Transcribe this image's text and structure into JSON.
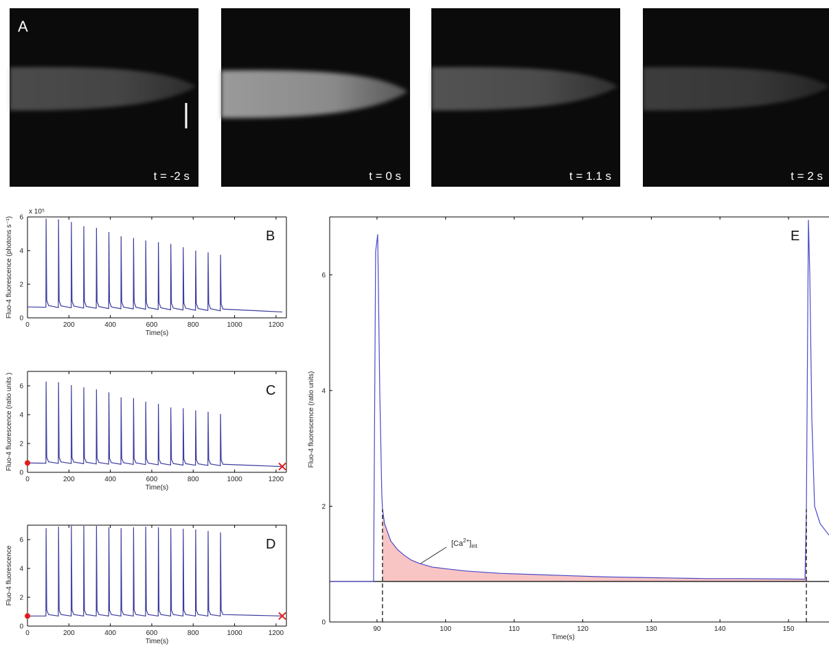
{
  "images": {
    "label": "A",
    "frames": [
      "t = -2 s",
      "t = 0 s",
      "t = 1.1 s",
      "t = 2 s"
    ]
  },
  "chart_data": [
    {
      "type": "line",
      "label": "B",
      "multiplier": "x 10⁵",
      "ylabel": "Fluo-4 fluorescence (photons s⁻¹)",
      "xlabel": "Time(s)",
      "xlim": [
        0,
        1250
      ],
      "ylim": [
        0,
        6
      ],
      "xticks": [
        0,
        200,
        400,
        600,
        800,
        1000,
        1200
      ],
      "yticks": [
        0,
        2,
        4,
        6
      ],
      "color": "#3a3a9e",
      "x": [
        0,
        89,
        90,
        93,
        102,
        149,
        150,
        153,
        162,
        211,
        212,
        215,
        224,
        271,
        272,
        275,
        284,
        332,
        333,
        336,
        345,
        392,
        393,
        396,
        405,
        451,
        452,
        455,
        464,
        511,
        512,
        515,
        524,
        570,
        571,
        574,
        583,
        631,
        632,
        635,
        644,
        691,
        692,
        695,
        704,
        751,
        752,
        755,
        764,
        811,
        812,
        815,
        824,
        871,
        872,
        875,
        884,
        931,
        932,
        935,
        944,
        1230
      ],
      "values": [
        0.65,
        0.63,
        5.9,
        1.03,
        0.73,
        0.61,
        5.85,
        1.01,
        0.71,
        0.6,
        5.7,
        1.0,
        0.7,
        0.58,
        5.45,
        0.98,
        0.68,
        0.57,
        5.35,
        0.97,
        0.67,
        0.55,
        5.1,
        0.95,
        0.65,
        0.54,
        4.85,
        0.94,
        0.64,
        0.53,
        4.75,
        0.93,
        0.63,
        0.51,
        4.6,
        0.91,
        0.61,
        0.5,
        4.5,
        0.9,
        0.6,
        0.48,
        4.4,
        0.88,
        0.58,
        0.47,
        4.2,
        0.87,
        0.57,
        0.45,
        4.0,
        0.85,
        0.55,
        0.44,
        3.9,
        0.84,
        0.54,
        0.42,
        3.75,
        0.82,
        0.52,
        0.35
      ]
    },
    {
      "type": "line",
      "label": "C",
      "ylabel": "Fluo-4 fluorescence (ratio units )",
      "xlabel": "Time(s)",
      "xlim": [
        0,
        1250
      ],
      "ylim": [
        0,
        7
      ],
      "xticks": [
        0,
        200,
        400,
        600,
        800,
        1000,
        1200
      ],
      "yticks": [
        0,
        2,
        4,
        6
      ],
      "color": "#3a3a9e",
      "x": [
        0,
        89,
        90,
        93,
        102,
        149,
        150,
        153,
        162,
        211,
        212,
        215,
        224,
        271,
        272,
        275,
        284,
        332,
        333,
        336,
        345,
        392,
        393,
        396,
        405,
        451,
        452,
        455,
        464,
        511,
        512,
        515,
        524,
        570,
        571,
        574,
        583,
        631,
        632,
        635,
        644,
        691,
        692,
        695,
        704,
        751,
        752,
        755,
        764,
        811,
        812,
        815,
        824,
        871,
        872,
        875,
        884,
        931,
        932,
        935,
        944,
        1230
      ],
      "values": [
        0.65,
        0.63,
        6.3,
        1.03,
        0.73,
        0.62,
        6.25,
        1.02,
        0.72,
        0.61,
        6.05,
        1.01,
        0.71,
        0.6,
        5.9,
        1.0,
        0.7,
        0.58,
        5.75,
        0.98,
        0.68,
        0.57,
        5.55,
        0.97,
        0.67,
        0.56,
        5.2,
        0.96,
        0.66,
        0.55,
        5.15,
        0.95,
        0.65,
        0.54,
        4.9,
        0.94,
        0.64,
        0.52,
        4.75,
        0.92,
        0.62,
        0.51,
        4.5,
        0.91,
        0.61,
        0.5,
        4.45,
        0.9,
        0.6,
        0.49,
        4.3,
        0.89,
        0.59,
        0.48,
        4.2,
        0.88,
        0.58,
        0.46,
        4.05,
        0.86,
        0.56,
        0.4
      ],
      "markers": [
        {
          "x": 0,
          "y": 0.65,
          "shape": "circle",
          "color": "#e21b1b"
        },
        {
          "x": 1230,
          "y": 0.4,
          "shape": "x",
          "color": "#e21b1b"
        }
      ]
    },
    {
      "type": "line",
      "label": "D",
      "ylabel": "Fluo-4 fluorescence",
      "xlabel": "Time(s)",
      "xlim": [
        0,
        1250
      ],
      "ylim": [
        0,
        7
      ],
      "xticks": [
        0,
        200,
        400,
        600,
        800,
        1000,
        1200
      ],
      "yticks": [
        0,
        2,
        4,
        6
      ],
      "color": "#3a3a9e",
      "x": [
        0,
        89,
        90,
        93,
        102,
        149,
        150,
        153,
        162,
        211,
        212,
        215,
        224,
        271,
        272,
        275,
        284,
        332,
        333,
        336,
        345,
        392,
        393,
        396,
        405,
        451,
        452,
        455,
        464,
        511,
        512,
        515,
        524,
        570,
        571,
        574,
        583,
        631,
        632,
        635,
        644,
        691,
        692,
        695,
        704,
        751,
        752,
        755,
        764,
        811,
        812,
        815,
        824,
        871,
        872,
        875,
        884,
        931,
        932,
        935,
        944,
        1230
      ],
      "values": [
        0.7,
        0.7,
        6.8,
        1.1,
        0.8,
        0.7,
        6.9,
        1.1,
        0.8,
        0.7,
        6.95,
        1.1,
        0.8,
        0.7,
        6.95,
        1.1,
        0.8,
        0.7,
        6.95,
        1.1,
        0.8,
        0.7,
        6.85,
        1.1,
        0.8,
        0.7,
        6.8,
        1.1,
        0.8,
        0.7,
        6.85,
        1.1,
        0.8,
        0.7,
        6.9,
        1.1,
        0.8,
        0.7,
        6.85,
        1.1,
        0.8,
        0.7,
        6.8,
        1.1,
        0.8,
        0.7,
        6.75,
        1.1,
        0.8,
        0.7,
        6.7,
        1.1,
        0.8,
        0.7,
        6.6,
        1.1,
        0.8,
        0.7,
        6.5,
        1.1,
        0.8,
        0.7
      ],
      "markers": [
        {
          "x": 0,
          "y": 0.7,
          "shape": "circle",
          "color": "#e21b1b"
        },
        {
          "x": 1230,
          "y": 0.7,
          "shape": "x",
          "color": "#e21b1b"
        }
      ]
    },
    {
      "type": "line",
      "label": "E",
      "ylabel": "Fluo-4 fluorescence (ratio units)",
      "xlabel": "Time(s)",
      "xlim": [
        83.1,
        155.9
      ],
      "ylim": [
        0,
        7
      ],
      "xticks": [
        90,
        100,
        110,
        120,
        130,
        140,
        150
      ],
      "yticks": [
        0,
        2,
        4,
        6
      ],
      "color": "#4848c8",
      "x": [
        83.1,
        89.5,
        89.8,
        90.1,
        90.4,
        90.7,
        90.8,
        91.1,
        92,
        93,
        94,
        95,
        96,
        98,
        100,
        103,
        108,
        113,
        118,
        123,
        128,
        133,
        138,
        143,
        152.4,
        152.6,
        152.9,
        153.1,
        153.4,
        153.8,
        154.6,
        155.9
      ],
      "values": [
        0.7,
        0.7,
        6.4,
        6.7,
        4.0,
        2.2,
        1.95,
        1.7,
        1.4,
        1.25,
        1.15,
        1.07,
        1.02,
        0.95,
        0.92,
        0.88,
        0.84,
        0.82,
        0.8,
        0.78,
        0.77,
        0.76,
        0.75,
        0.75,
        0.74,
        1.9,
        6.95,
        6.0,
        3.5,
        2.0,
        1.7,
        1.5
      ],
      "baseline": 0.7,
      "fill_range": [
        90.8,
        152.6
      ],
      "fill_color": "#f9c4c4",
      "dashed_lines": [
        {
          "x": 90.8,
          "y": 1.95
        },
        {
          "x": 152.6,
          "y": 1.95
        }
      ],
      "annotation": [
        "[Ca",
        "2+",
        "]",
        "int"
      ]
    }
  ]
}
